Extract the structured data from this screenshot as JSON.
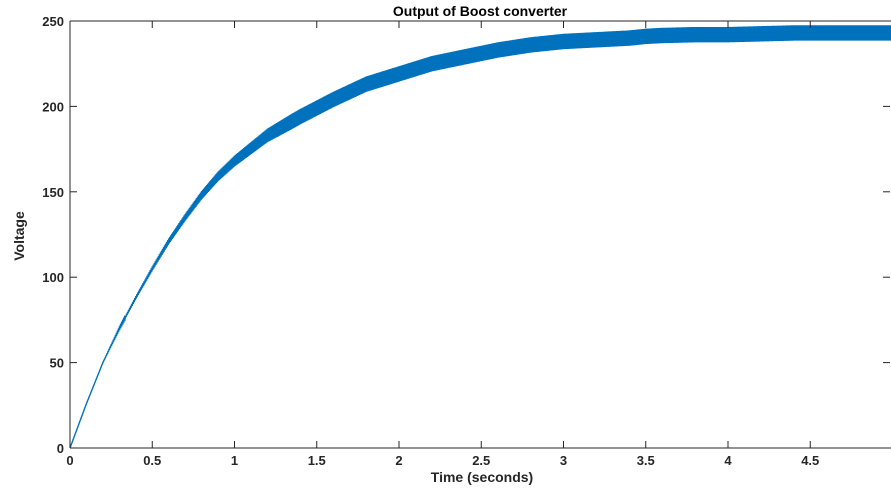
{
  "chart_data": {
    "type": "line",
    "title": "Output of Boost converter",
    "xlabel": "Time (seconds)",
    "ylabel": "Voltage",
    "xlim": [
      0,
      5
    ],
    "ylim": [
      0,
      250
    ],
    "xticks": [
      0,
      0.5,
      1,
      1.5,
      2,
      2.5,
      3,
      3.5,
      4,
      4.5,
      5
    ],
    "xtick_labels": [
      "0",
      "0.5",
      "1",
      "1.5",
      "2",
      "2.5",
      "3",
      "3.5",
      "4",
      "4.5",
      "5"
    ],
    "yticks": [
      0,
      50,
      100,
      150,
      200,
      250
    ],
    "ytick_labels": [
      "0",
      "50",
      "100",
      "150",
      "200",
      "250"
    ],
    "grid": false,
    "series": [
      {
        "color": "#0072BD",
        "x": [
          0,
          0.1,
          0.2,
          0.3,
          0.4,
          0.5,
          0.6,
          0.7,
          0.8,
          0.9,
          1.0,
          1.2,
          1.4,
          1.5,
          1.6,
          1.8,
          2.0,
          2.2,
          2.4,
          2.5,
          2.6,
          2.8,
          3.0,
          3.2,
          3.4,
          3.5,
          3.6,
          3.8,
          4.0,
          4.2,
          4.4,
          4.5,
          4.6,
          4.8,
          5.0
        ],
        "y": [
          0,
          26,
          50,
          70,
          88,
          105,
          121,
          135,
          148,
          159,
          168,
          183,
          194,
          199,
          204,
          213,
          219,
          225,
          229,
          231,
          233,
          236,
          238,
          239,
          240,
          241,
          241.5,
          242,
          242,
          242.5,
          243,
          243,
          243,
          243,
          243
        ],
        "ripple_amplitude_max": 4.5
      }
    ]
  }
}
